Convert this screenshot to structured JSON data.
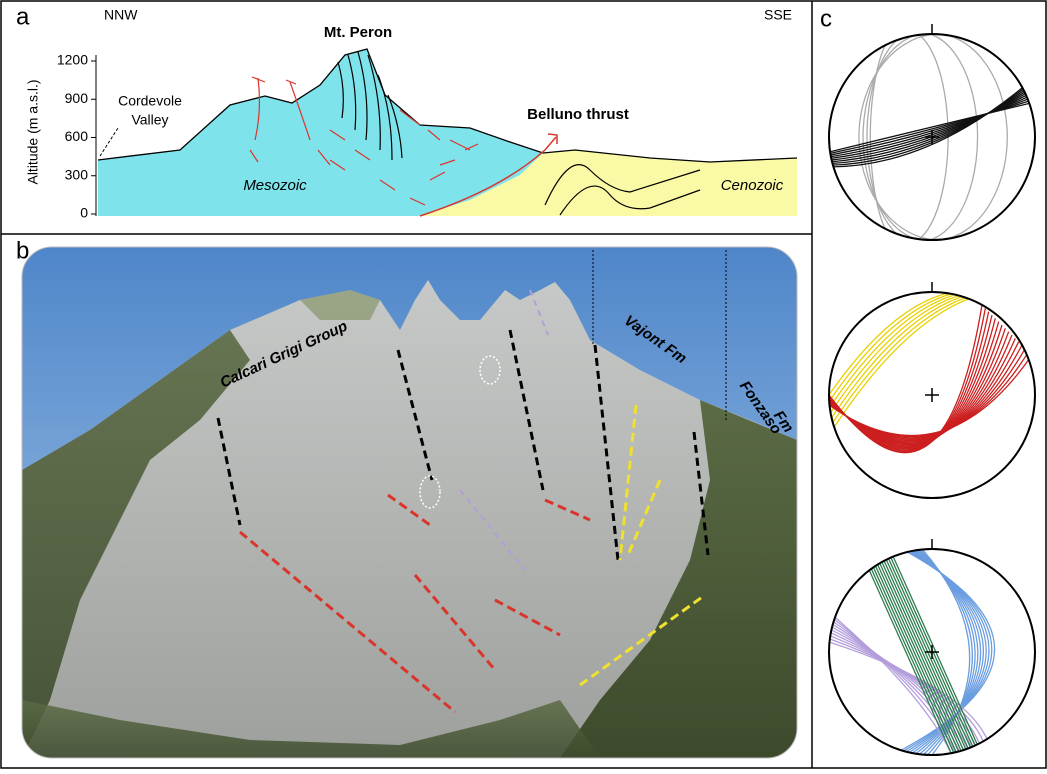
{
  "panel_a": {
    "label": "a",
    "left_direction": "NNW",
    "right_direction": "SSE",
    "peak": "Mt. Peron",
    "valley_line1": "Cordevole",
    "valley_line2": "Valley",
    "thrust": "Belluno thrust",
    "mesozoic": "Mesozoic",
    "cenozoic": "Cenozoic",
    "axis_title": "Altitude (m a.s.l.)",
    "ylim": [
      0,
      1200
    ],
    "yticks": [
      0,
      300,
      600,
      900,
      1200
    ]
  },
  "panel_b": {
    "label": "b",
    "calcari": "Calcari Grigi Group",
    "vajont": "Vajont Fm",
    "fonzaso_line1": "Fonzaso",
    "fonzaso_line2": "Fm"
  },
  "panel_c": {
    "label": "c"
  }
}
